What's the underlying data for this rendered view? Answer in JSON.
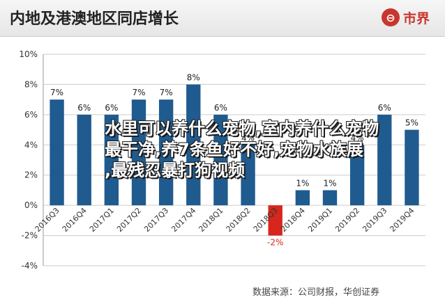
{
  "header": {
    "title": "内地及港澳地区同店增长",
    "logo_text": "市界",
    "logo_mark": "⊖"
  },
  "source": "数据来源：公司财报，华创证券",
  "overlay": {
    "lines": [
      "水里可以养什么宠物,室内养什么宠物",
      "最干净,养7条鱼好不好,宠物水族展",
      ",最残忍暴打狗视频"
    ]
  },
  "colors": {
    "bar": "#1f5b8f",
    "negative_bar": "#d7261e",
    "negative_label": "#d7261e",
    "grid": "#cccccc"
  },
  "chart_data": {
    "type": "bar",
    "title": "内地及港澳地区同店增长",
    "categories": [
      "2016Q3",
      "2016Q4",
      "2017Q1",
      "2017Q2",
      "2017Q3",
      "2017Q4",
      "2018Q1",
      "2018Q2",
      "2018Q3",
      "2018Q4",
      "2019Q1",
      "2019Q2",
      "2019Q3",
      "2019Q4"
    ],
    "values": [
      7,
      6,
      6,
      7,
      7,
      8,
      6,
      4,
      -2,
      1,
      1,
      4,
      6,
      5
    ],
    "data_labels": [
      "7%",
      "6%",
      "6%",
      "7%",
      "7%",
      "8%",
      "6%",
      "4%",
      "-2%",
      "1%",
      "1%",
      "4%",
      "6%",
      "5%"
    ],
    "y_ticks": [
      "10%",
      "8%",
      "6%",
      "4%",
      "2%",
      "0%",
      "-2%",
      "-4%"
    ],
    "y_tick_values": [
      10,
      8,
      6,
      4,
      2,
      0,
      -2,
      -4
    ],
    "ylim": [
      -4,
      10
    ],
    "grid": true,
    "legend": "none"
  }
}
